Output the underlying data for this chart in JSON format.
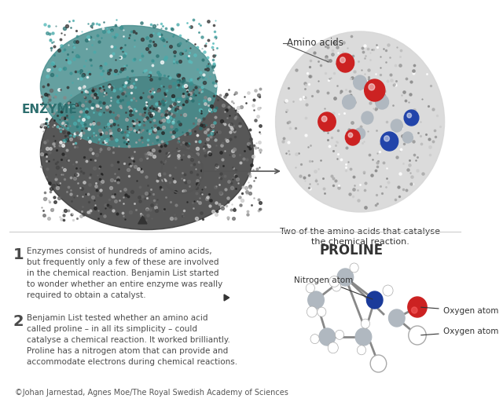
{
  "background_color": "#ffffff",
  "title_enzyme": "ENZYME",
  "title_proline": "PROLINE",
  "amino_acids_label": "Amino acids",
  "zoom_caption": "Two of the amino acids that catalyse\nthe chemical reaction.",
  "text1_number": "1",
  "text1_body": "Enzymes consist of hundreds of amino acids,\nbut frequently only a few of these are involved\nin the chemical reaction. Benjamin List started\nto wonder whether an entire enzyme was really\nrequired to obtain a catalyst.",
  "text2_number": "2",
  "text2_body": "Benjamin List tested whether an amino acid\ncalled proline – in all its simplicity – could\ncatalyse a chemical reaction. It worked brilliantly.\nProline has a nitrogen atom that can provide and\naccommodate electrons during chemical reactions.",
  "nitrogen_label": "Nitrogen atom",
  "oxygen_label1": "Oxygen atom",
  "oxygen_label2": "Oxygen atom",
  "copyright": "©Johan Jarnestad, Agnes Moe/The Royal Swedish Academy of Sciences",
  "text_color": "#4a4a4a",
  "number_color": "#4a4a4a",
  "enzyme_color": "#2d6e6e",
  "title_color": "#2d2d2d"
}
